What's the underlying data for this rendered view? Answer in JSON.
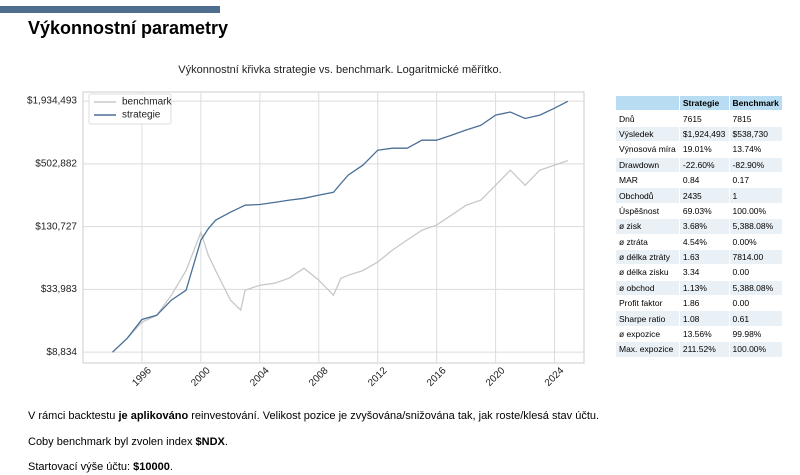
{
  "header": {
    "title": "Výkonnostní parametry"
  },
  "chart_data": {
    "type": "line",
    "title": "Výkonnostní křivka strategie vs. benchmark. Logaritmické měřítko.",
    "x": [
      1994,
      1995,
      1996,
      1997,
      1998,
      1999,
      2000,
      2000.5,
      2001,
      2002,
      2002.7,
      2003,
      2004,
      2005,
      2006,
      2007,
      2008,
      2009,
      2009.5,
      2010,
      2011,
      2012,
      2013,
      2014,
      2015,
      2016,
      2017,
      2018,
      2019,
      2020,
      2021,
      2022,
      2023,
      2024,
      2024.9
    ],
    "series": [
      {
        "name": "benchmark",
        "color": "#c8c8c8",
        "values": [
          8834,
          11900,
          16800,
          19500,
          30000,
          51000,
          116000,
          70800,
          51000,
          27000,
          21800,
          33400,
          37200,
          38800,
          43300,
          53600,
          41400,
          30000,
          43000,
          46000,
          51000,
          61000,
          78900,
          98000,
          121000,
          135000,
          167000,
          207000,
          231000,
          318000,
          439000,
          318000,
          439000,
          489000,
          538730
        ]
      },
      {
        "name": "strategie",
        "color": "#4a6f96",
        "values": [
          8834,
          11900,
          17800,
          19500,
          27000,
          33400,
          97800,
          125000,
          150000,
          178000,
          198000,
          207000,
          210000,
          220000,
          231000,
          240000,
          257000,
          273000,
          330000,
          395000,
          489000,
          674000,
          703000,
          703000,
          836000,
          836000,
          930000,
          1040000,
          1150000,
          1430000,
          1530000,
          1330000,
          1430000,
          1660000,
          1924493
        ]
      }
    ],
    "xlim": [
      1992,
      2026
    ],
    "xticks": [
      1996,
      2000,
      2004,
      2008,
      2012,
      2016,
      2020,
      2024
    ],
    "ylim": [
      7000,
      2350000
    ],
    "yticks": [
      {
        "value": 8834,
        "label": "$8,834"
      },
      {
        "value": 33983,
        "label": "$33,983"
      },
      {
        "value": 130727,
        "label": "$130,727"
      },
      {
        "value": 502882,
        "label": "$502,882"
      },
      {
        "value": 1934493,
        "label": "$1,934,493"
      }
    ],
    "log_scale": true,
    "grid": true,
    "legend": "upper left"
  },
  "table": {
    "columns": [
      "Strategie",
      "Benchmark"
    ],
    "rows": [
      [
        "Dnů",
        "7615",
        "7815"
      ],
      [
        "Výsledek",
        "$1,924,493",
        "$538,730"
      ],
      [
        "Výnosová míra",
        "19.01%",
        "13.74%"
      ],
      [
        "Drawdown",
        "-22.60%",
        "-82.90%"
      ],
      [
        "MAR",
        "0.84",
        "0.17"
      ],
      [
        "Obchodů",
        "2435",
        "1"
      ],
      [
        "Úspěšnost",
        "69.03%",
        "100.00%"
      ],
      [
        "ø zisk",
        "3.68%",
        "5,388.08%"
      ],
      [
        "ø ztráta",
        "4.54%",
        "0.00%"
      ],
      [
        "ø délka ztráty",
        "1.63",
        "7814.00"
      ],
      [
        "ø délka zisku",
        "3.34",
        "0.00"
      ],
      [
        "ø obchod",
        "1.13%",
        "5,388.08%"
      ],
      [
        "Profit faktor",
        "1.86",
        "0.00"
      ],
      [
        "Sharpe ratio",
        "1.08",
        "0.61"
      ],
      [
        "ø expozice",
        "13.56%",
        "99.98%"
      ],
      [
        "Max. expozice",
        "211.52%",
        "100.00%"
      ]
    ]
  },
  "notes": [
    [
      {
        "text": "V rámci backtestu ",
        "bold": false
      },
      {
        "text": "je aplikováno",
        "bold": true
      },
      {
        "text": " reinvestování. Velikost pozice je zvyšována/snižována tak, jak roste/klesá stav účtu.",
        "bold": false
      }
    ],
    [
      {
        "text": "Coby benchmark byl zvolen index ",
        "bold": false
      },
      {
        "text": "$NDX",
        "bold": true
      },
      {
        "text": ".",
        "bold": false
      }
    ],
    [
      {
        "text": "Startovací výše účtu: ",
        "bold": false
      },
      {
        "text": "$10000",
        "bold": true
      },
      {
        "text": ".",
        "bold": false
      }
    ]
  ]
}
